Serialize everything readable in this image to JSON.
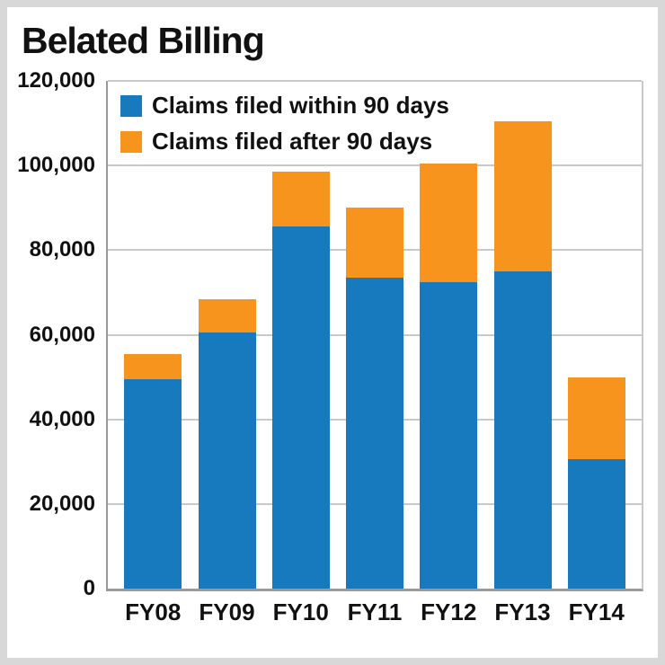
{
  "chart_data": {
    "type": "bar",
    "stacked": true,
    "title": "Belated Billing",
    "categories": [
      "FY08",
      "FY09",
      "FY10",
      "FY11",
      "FY12",
      "FY13",
      "FY14"
    ],
    "series": [
      {
        "name": "Claims filed within 90 days",
        "values": [
          49500,
          60500,
          85500,
          73500,
          72500,
          75000,
          30500
        ]
      },
      {
        "name": "Claims filed after 90 days",
        "values": [
          6000,
          8000,
          13000,
          16500,
          28000,
          35500,
          19500
        ]
      }
    ],
    "totals": [
      55500,
      68500,
      98500,
      90000,
      100500,
      110500,
      50000
    ],
    "xlabel": "",
    "ylabel": "",
    "ylim": [
      0,
      120000
    ],
    "yticks": [
      {
        "value": 0,
        "label": "0"
      },
      {
        "value": 20000,
        "label": "20,000"
      },
      {
        "value": 40000,
        "label": "40,000"
      },
      {
        "value": 60000,
        "label": "60,000"
      },
      {
        "value": 80000,
        "label": "80,000"
      },
      {
        "value": 100000,
        "label": "100,000"
      },
      {
        "value": 120000,
        "label": "120,000"
      }
    ],
    "colors": {
      "within": "#1779be",
      "after": "#f7941e"
    },
    "grid": "horizontal",
    "legend_position": "top-left-inside"
  }
}
